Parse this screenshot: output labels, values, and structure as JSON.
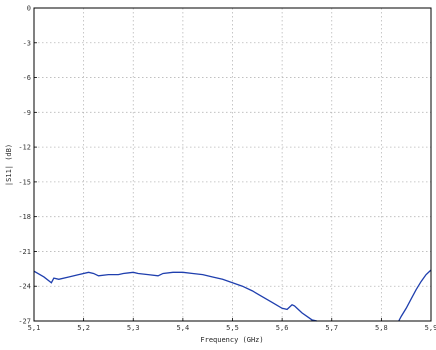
{
  "chart_data": {
    "type": "line",
    "xlabel": "Frequency (GHz)",
    "ylabel": "|S11| (dB)",
    "xlim": [
      5.1,
      5.9
    ],
    "ylim": [
      -27,
      0
    ],
    "grid": true,
    "x_ticks": [
      "5,1",
      "5,2",
      "5,3",
      "5,4",
      "5,5",
      "5,6",
      "5,7",
      "5,8",
      "5,9"
    ],
    "y_ticks": [
      "0",
      "-3",
      "-6",
      "-9",
      "-12",
      "-15",
      "-18",
      "-21",
      "-24",
      "-27"
    ],
    "line_color": "#1f3fae",
    "series": [
      {
        "x": [
          5.1,
          5.12,
          5.135,
          5.14,
          5.15,
          5.17,
          5.19,
          5.21,
          5.22,
          5.23,
          5.25,
          5.27,
          5.28,
          5.3,
          5.31,
          5.33,
          5.35,
          5.36,
          5.38,
          5.4,
          5.42,
          5.44,
          5.46,
          5.48,
          5.5,
          5.52,
          5.54,
          5.56,
          5.58,
          5.6,
          5.61,
          5.62,
          5.625,
          5.63,
          5.64,
          5.66,
          5.67
        ],
        "y": [
          -22.7,
          -23.2,
          -23.7,
          -23.3,
          -23.4,
          -23.2,
          -23.0,
          -22.8,
          -22.9,
          -23.1,
          -23.0,
          -23.0,
          -22.9,
          -22.8,
          -22.9,
          -23.0,
          -23.1,
          -22.9,
          -22.8,
          -22.8,
          -22.9,
          -23.0,
          -23.2,
          -23.4,
          -23.7,
          -24.0,
          -24.4,
          -24.9,
          -25.4,
          -25.9,
          -26.0,
          -25.6,
          -25.7,
          -25.9,
          -26.3,
          -26.9,
          -27.0
        ]
      },
      {
        "x": [
          5.835,
          5.84,
          5.85,
          5.86,
          5.87,
          5.88,
          5.89,
          5.9
        ],
        "y": [
          -27.0,
          -26.6,
          -25.9,
          -25.1,
          -24.3,
          -23.6,
          -23.0,
          -22.6
        ]
      }
    ]
  }
}
